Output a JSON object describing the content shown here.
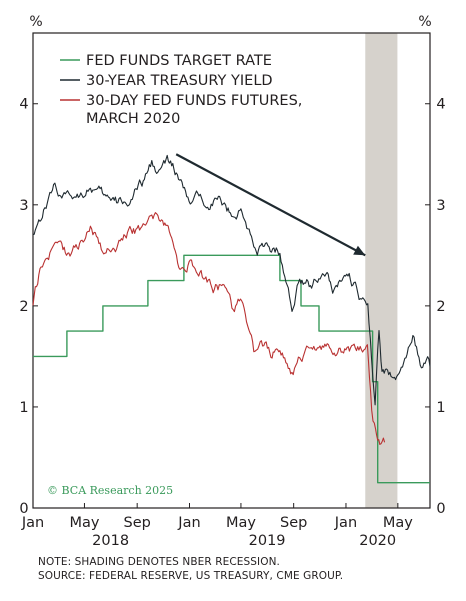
{
  "chart_data": {
    "type": "line",
    "y_unit_left": "%",
    "y_unit_right": "%",
    "ylim": [
      0,
      4.7
    ],
    "yticks": [
      0,
      1,
      2,
      3,
      4
    ],
    "xlim": [
      "2018-01-01",
      "2020-07-15"
    ],
    "x_tick_labels": [
      {
        "date": "2018-01-01",
        "label": "Jan"
      },
      {
        "date": "2018-05-01",
        "label": "May"
      },
      {
        "date": "2018-09-01",
        "label": "Sep"
      },
      {
        "date": "2019-01-01",
        "label": "Jan"
      },
      {
        "date": "2019-05-01",
        "label": "May"
      },
      {
        "date": "2019-09-01",
        "label": "Sep"
      },
      {
        "date": "2020-01-01",
        "label": "Jan"
      },
      {
        "date": "2020-05-01",
        "label": "May"
      }
    ],
    "year_labels": [
      {
        "date": "2018-07-01",
        "label": "2018"
      },
      {
        "date": "2019-07-01",
        "label": "2019"
      },
      {
        "date": "2020-03-15",
        "label": "2020"
      }
    ],
    "grid": false,
    "legend_position": "top-left",
    "recession_shading": {
      "start": "2020-02-15",
      "end": "2020-04-30",
      "color": "#d6d2cc"
    },
    "series": [
      {
        "name": "FED FUNDS TARGET RATE",
        "color": "#3a9a5b",
        "line_shape": "step",
        "points": [
          [
            "2018-01-01",
            1.5
          ],
          [
            "2018-03-21",
            1.75
          ],
          [
            "2018-06-13",
            2.0
          ],
          [
            "2018-09-26",
            2.25
          ],
          [
            "2018-12-19",
            2.5
          ],
          [
            "2019-07-31",
            2.25
          ],
          [
            "2019-09-18",
            2.0
          ],
          [
            "2019-10-30",
            1.75
          ],
          [
            "2020-03-03",
            1.25
          ],
          [
            "2020-03-15",
            0.25
          ],
          [
            "2020-07-15",
            0.25
          ]
        ]
      },
      {
        "name": "30-YEAR TREASURY YIELD",
        "color": "#1f2a30",
        "line_shape": "noisy",
        "points": [
          [
            "2018-01-01",
            2.75
          ],
          [
            "2018-01-20",
            2.9
          ],
          [
            "2018-02-21",
            3.2
          ],
          [
            "2018-03-20",
            3.05
          ],
          [
            "2018-05-15",
            3.2
          ],
          [
            "2018-06-15",
            3.05
          ],
          [
            "2018-07-15",
            3.0
          ],
          [
            "2018-08-15",
            3.05
          ],
          [
            "2018-09-15",
            3.2
          ],
          [
            "2018-10-05",
            3.4
          ],
          [
            "2018-10-25",
            3.35
          ],
          [
            "2018-11-10",
            3.42
          ],
          [
            "2018-12-01",
            3.3
          ],
          [
            "2018-12-31",
            3.0
          ],
          [
            "2019-02-01",
            3.05
          ],
          [
            "2019-03-01",
            3.1
          ],
          [
            "2019-04-01",
            2.95
          ],
          [
            "2019-05-01",
            2.95
          ],
          [
            "2019-05-31",
            2.6
          ],
          [
            "2019-06-30",
            2.55
          ],
          [
            "2019-07-31",
            2.55
          ],
          [
            "2019-08-28",
            1.95
          ],
          [
            "2019-09-15",
            2.35
          ],
          [
            "2019-10-10",
            2.2
          ],
          [
            "2019-11-10",
            2.38
          ],
          [
            "2019-12-01",
            2.2
          ],
          [
            "2019-12-31",
            2.35
          ],
          [
            "2020-01-20",
            2.2
          ],
          [
            "2020-02-21",
            1.95
          ],
          [
            "2020-03-09",
            1.0
          ],
          [
            "2020-03-18",
            1.72
          ],
          [
            "2020-03-25",
            1.35
          ],
          [
            "2020-04-15",
            1.3
          ],
          [
            "2020-05-01",
            1.35
          ],
          [
            "2020-05-20",
            1.45
          ],
          [
            "2020-06-05",
            1.65
          ],
          [
            "2020-06-25",
            1.4
          ],
          [
            "2020-07-15",
            1.4
          ]
        ]
      },
      {
        "name": "30-DAY FED FUNDS FUTURES, MARCH 2020",
        "color": "#b93232",
        "line_shape": "noisy",
        "points": [
          [
            "2018-01-01",
            2.05
          ],
          [
            "2018-01-20",
            2.4
          ],
          [
            "2018-02-21",
            2.6
          ],
          [
            "2018-03-31",
            2.5
          ],
          [
            "2018-05-15",
            2.75
          ],
          [
            "2018-06-15",
            2.55
          ],
          [
            "2018-07-15",
            2.6
          ],
          [
            "2018-08-15",
            2.75
          ],
          [
            "2018-09-15",
            2.72
          ],
          [
            "2018-10-05",
            2.95
          ],
          [
            "2018-10-25",
            2.85
          ],
          [
            "2018-11-15",
            2.75
          ],
          [
            "2018-12-10",
            2.3
          ],
          [
            "2018-12-31",
            2.45
          ],
          [
            "2019-01-31",
            2.3
          ],
          [
            "2019-02-28",
            2.2
          ],
          [
            "2019-03-20",
            2.2
          ],
          [
            "2019-04-10",
            1.95
          ],
          [
            "2019-04-30",
            2.05
          ],
          [
            "2019-05-31",
            1.5
          ],
          [
            "2019-06-15",
            1.65
          ],
          [
            "2019-07-10",
            1.55
          ],
          [
            "2019-07-31",
            1.6
          ],
          [
            "2019-08-28",
            1.35
          ],
          [
            "2019-09-15",
            1.45
          ],
          [
            "2019-10-15",
            1.55
          ],
          [
            "2019-11-10",
            1.58
          ],
          [
            "2019-12-10",
            1.58
          ],
          [
            "2020-01-20",
            1.57
          ],
          [
            "2020-02-20",
            1.56
          ],
          [
            "2020-03-01",
            1.0
          ],
          [
            "2020-03-10",
            0.78
          ],
          [
            "2020-03-20",
            0.65
          ],
          [
            "2020-03-31",
            0.65
          ]
        ]
      }
    ],
    "annotations": [
      {
        "type": "arrow",
        "from": [
          "2018-12-01",
          3.5
        ],
        "to": [
          "2020-02-15",
          2.5
        ],
        "color": "#1f2a30"
      }
    ]
  },
  "watermark": "© BCA Research 2025",
  "notes": {
    "line1": "NOTE: SHADING DENOTES NBER RECESSION.",
    "line2": "SOURCE: FEDERAL RESERVE, US TREASURY, CME GROUP."
  }
}
